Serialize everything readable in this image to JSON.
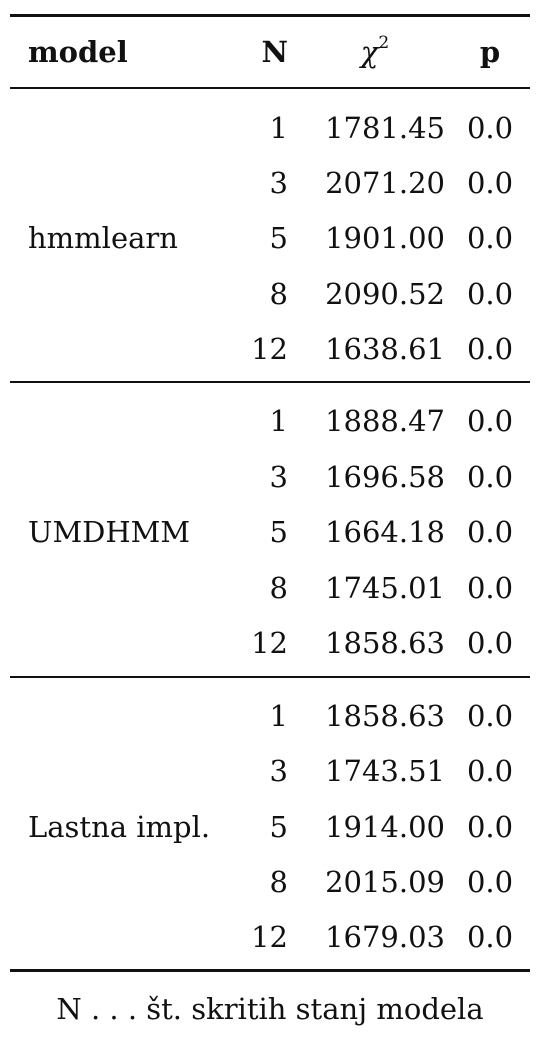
{
  "header": {
    "model": "model",
    "n": "N",
    "chi": "χ",
    "chi_exp": "2",
    "p": "p"
  },
  "groups": [
    {
      "model": "hmmlearn",
      "rows": [
        {
          "n": "1",
          "chi": "1781.45",
          "p": "0.0"
        },
        {
          "n": "3",
          "chi": "2071.20",
          "p": "0.0"
        },
        {
          "n": "5",
          "chi": "1901.00",
          "p": "0.0"
        },
        {
          "n": "8",
          "chi": "2090.52",
          "p": "0.0"
        },
        {
          "n": "12",
          "chi": "1638.61",
          "p": "0.0"
        }
      ]
    },
    {
      "model": "UMDHMM",
      "rows": [
        {
          "n": "1",
          "chi": "1888.47",
          "p": "0.0"
        },
        {
          "n": "3",
          "chi": "1696.58",
          "p": "0.0"
        },
        {
          "n": "5",
          "chi": "1664.18",
          "p": "0.0"
        },
        {
          "n": "8",
          "chi": "1745.01",
          "p": "0.0"
        },
        {
          "n": "12",
          "chi": "1858.63",
          "p": "0.0"
        }
      ]
    },
    {
      "model": "Lastna impl.",
      "rows": [
        {
          "n": "1",
          "chi": "1858.63",
          "p": "0.0"
        },
        {
          "n": "3",
          "chi": "1743.51",
          "p": "0.0"
        },
        {
          "n": "5",
          "chi": "1914.00",
          "p": "0.0"
        },
        {
          "n": "8",
          "chi": "2015.09",
          "p": "0.0"
        },
        {
          "n": "12",
          "chi": "1679.03",
          "p": "0.0"
        }
      ]
    }
  ],
  "footnote": "N . . . št. skritih stanj modela"
}
